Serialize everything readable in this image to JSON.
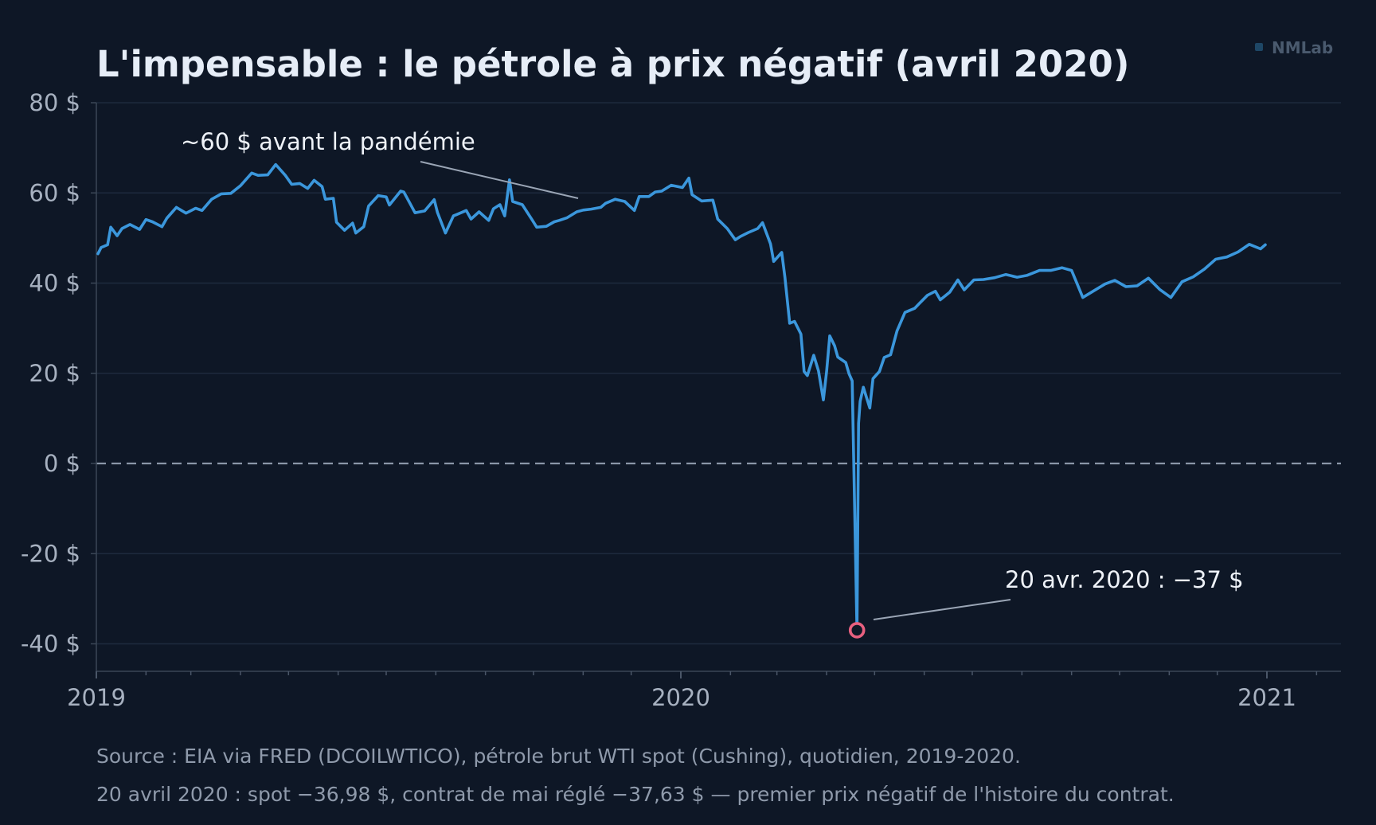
{
  "brand": {
    "label": "NMLab",
    "icon": "square-icon",
    "color": "#1e4766"
  },
  "colors": {
    "background": "#0e1726",
    "line": "#3b97dc",
    "marker": "#e8607f",
    "grid": "#1d2a3d",
    "zero_line": "#8a96a8"
  },
  "annotations": {
    "pre_pandemic": "~60 $ avant la pandémie",
    "negative": "20 avr. 2020 : −37 $"
  },
  "footer": {
    "line1": "Source : EIA via FRED (DCOILWTICO), pétrole brut WTI spot (Cushing), quotidien, 2019-2020.",
    "line2": "20 avril 2020 : spot −36,98 $, contrat de mai réglé −37,63 $ — premier prix négatif de l'histoire du contrat."
  },
  "chart_data": {
    "type": "line",
    "title": "L'impensable : le pétrole à prix négatif (avril 2020)",
    "xlabel": "",
    "ylabel": "",
    "xlim": [
      "2019-01-01",
      "2021-03-01"
    ],
    "ylim": [
      -46,
      80
    ],
    "yticks": [
      80,
      60,
      40,
      20,
      0,
      -20,
      -40
    ],
    "ytick_labels": [
      "80 $",
      "60 $",
      "40 $",
      "20 $",
      "0 $",
      "-20 $",
      "-40 $"
    ],
    "xticks": [
      "2019-01-01",
      "2020-01-01",
      "2021-01-01"
    ],
    "xtick_labels": [
      "2019",
      "2020",
      "2021"
    ],
    "grid": true,
    "reference_line": {
      "y": 0,
      "style": "dashed"
    },
    "highlight_point": {
      "x": "2020-04-20",
      "y": -36.98
    },
    "series": [
      {
        "values": [
          [
            "2019-01-02",
            46.5
          ],
          [
            "2019-01-04",
            47.9
          ],
          [
            "2019-01-08",
            48.5
          ],
          [
            "2019-01-10",
            52.4
          ],
          [
            "2019-01-14",
            50.5
          ],
          [
            "2019-01-17",
            52.1
          ],
          [
            "2019-01-22",
            53.0
          ],
          [
            "2019-01-28",
            51.9
          ],
          [
            "2019-02-01",
            54.1
          ],
          [
            "2019-02-05",
            53.6
          ],
          [
            "2019-02-11",
            52.5
          ],
          [
            "2019-02-14",
            54.4
          ],
          [
            "2019-02-20",
            56.8
          ],
          [
            "2019-02-26",
            55.5
          ],
          [
            "2019-03-04",
            56.6
          ],
          [
            "2019-03-08",
            56.1
          ],
          [
            "2019-03-14",
            58.6
          ],
          [
            "2019-03-20",
            59.8
          ],
          [
            "2019-03-26",
            59.9
          ],
          [
            "2019-04-01",
            61.6
          ],
          [
            "2019-04-08",
            64.4
          ],
          [
            "2019-04-12",
            63.9
          ],
          [
            "2019-04-18",
            64.0
          ],
          [
            "2019-04-23",
            66.3
          ],
          [
            "2019-04-29",
            63.9
          ],
          [
            "2019-05-03",
            61.9
          ],
          [
            "2019-05-08",
            62.1
          ],
          [
            "2019-05-13",
            61.0
          ],
          [
            "2019-05-17",
            62.8
          ],
          [
            "2019-05-22",
            61.4
          ],
          [
            "2019-05-24",
            58.6
          ],
          [
            "2019-05-29",
            58.8
          ],
          [
            "2019-05-31",
            53.5
          ],
          [
            "2019-06-05",
            51.7
          ],
          [
            "2019-06-10",
            53.3
          ],
          [
            "2019-06-12",
            51.1
          ],
          [
            "2019-06-17",
            52.5
          ],
          [
            "2019-06-20",
            57.1
          ],
          [
            "2019-06-26",
            59.4
          ],
          [
            "2019-07-01",
            59.1
          ],
          [
            "2019-07-03",
            57.3
          ],
          [
            "2019-07-10",
            60.4
          ],
          [
            "2019-07-12",
            60.2
          ],
          [
            "2019-07-16",
            57.6
          ],
          [
            "2019-07-19",
            55.6
          ],
          [
            "2019-07-25",
            56.0
          ],
          [
            "2019-07-31",
            58.5
          ],
          [
            "2019-08-02",
            55.7
          ],
          [
            "2019-08-07",
            51.1
          ],
          [
            "2019-08-12",
            54.9
          ],
          [
            "2019-08-14",
            55.2
          ],
          [
            "2019-08-20",
            56.1
          ],
          [
            "2019-08-23",
            54.2
          ],
          [
            "2019-08-28",
            55.8
          ],
          [
            "2019-09-03",
            53.9
          ],
          [
            "2019-09-06",
            56.5
          ],
          [
            "2019-09-10",
            57.4
          ],
          [
            "2019-09-13",
            54.9
          ],
          [
            "2019-09-16",
            62.9
          ],
          [
            "2019-09-18",
            58.1
          ],
          [
            "2019-09-24",
            57.4
          ],
          [
            "2019-09-30",
            54.1
          ],
          [
            "2019-10-03",
            52.4
          ],
          [
            "2019-10-09",
            52.6
          ],
          [
            "2019-10-14",
            53.6
          ],
          [
            "2019-10-17",
            53.9
          ],
          [
            "2019-10-22",
            54.5
          ],
          [
            "2019-10-28",
            55.8
          ],
          [
            "2019-11-01",
            56.2
          ],
          [
            "2019-11-06",
            56.4
          ],
          [
            "2019-11-12",
            56.8
          ],
          [
            "2019-11-15",
            57.7
          ],
          [
            "2019-11-21",
            58.6
          ],
          [
            "2019-11-27",
            58.1
          ],
          [
            "2019-12-03",
            56.1
          ],
          [
            "2019-12-06",
            59.2
          ],
          [
            "2019-12-12",
            59.2
          ],
          [
            "2019-12-16",
            60.2
          ],
          [
            "2019-12-20",
            60.4
          ],
          [
            "2019-12-26",
            61.7
          ],
          [
            "2020-01-02",
            61.2
          ],
          [
            "2020-01-06",
            63.3
          ],
          [
            "2020-01-08",
            59.6
          ],
          [
            "2020-01-14",
            58.2
          ],
          [
            "2020-01-21",
            58.4
          ],
          [
            "2020-01-24",
            54.2
          ],
          [
            "2020-01-30",
            52.1
          ],
          [
            "2020-02-04",
            49.6
          ],
          [
            "2020-02-07",
            50.3
          ],
          [
            "2020-02-12",
            51.2
          ],
          [
            "2020-02-18",
            52.1
          ],
          [
            "2020-02-21",
            53.4
          ],
          [
            "2020-02-26",
            48.7
          ],
          [
            "2020-02-28",
            44.8
          ],
          [
            "2020-03-04",
            46.8
          ],
          [
            "2020-03-06",
            41.3
          ],
          [
            "2020-03-09",
            31.1
          ],
          [
            "2020-03-12",
            31.5
          ],
          [
            "2020-03-16",
            28.7
          ],
          [
            "2020-03-18",
            20.4
          ],
          [
            "2020-03-20",
            19.5
          ],
          [
            "2020-03-24",
            24.0
          ],
          [
            "2020-03-27",
            20.5
          ],
          [
            "2020-03-30",
            14.1
          ],
          [
            "2020-04-01",
            20.3
          ],
          [
            "2020-04-03",
            28.3
          ],
          [
            "2020-04-06",
            26.1
          ],
          [
            "2020-04-08",
            23.6
          ],
          [
            "2020-04-13",
            22.4
          ],
          [
            "2020-04-15",
            19.9
          ],
          [
            "2020-04-17",
            18.3
          ],
          [
            "2020-04-20",
            -36.98
          ],
          [
            "2020-04-21",
            8.9
          ],
          [
            "2020-04-22",
            13.8
          ],
          [
            "2020-04-24",
            16.9
          ],
          [
            "2020-04-28",
            12.3
          ],
          [
            "2020-04-30",
            18.8
          ],
          [
            "2020-05-04",
            20.4
          ],
          [
            "2020-05-07",
            23.5
          ],
          [
            "2020-05-11",
            24.1
          ],
          [
            "2020-05-15",
            29.4
          ],
          [
            "2020-05-20",
            33.5
          ],
          [
            "2020-05-26",
            34.4
          ],
          [
            "2020-05-29",
            35.5
          ],
          [
            "2020-06-03",
            37.3
          ],
          [
            "2020-06-08",
            38.2
          ],
          [
            "2020-06-11",
            36.3
          ],
          [
            "2020-06-17",
            38.0
          ],
          [
            "2020-06-22",
            40.7
          ],
          [
            "2020-06-26",
            38.5
          ],
          [
            "2020-07-02",
            40.7
          ],
          [
            "2020-07-08",
            40.8
          ],
          [
            "2020-07-15",
            41.2
          ],
          [
            "2020-07-22",
            41.9
          ],
          [
            "2020-07-29",
            41.3
          ],
          [
            "2020-08-04",
            41.7
          ],
          [
            "2020-08-12",
            42.8
          ],
          [
            "2020-08-19",
            42.8
          ],
          [
            "2020-08-26",
            43.4
          ],
          [
            "2020-09-01",
            42.8
          ],
          [
            "2020-09-08",
            36.8
          ],
          [
            "2020-09-15",
            38.3
          ],
          [
            "2020-09-22",
            39.8
          ],
          [
            "2020-09-28",
            40.6
          ],
          [
            "2020-10-05",
            39.2
          ],
          [
            "2020-10-12",
            39.4
          ],
          [
            "2020-10-19",
            41.1
          ],
          [
            "2020-10-26",
            38.6
          ],
          [
            "2020-11-02",
            36.8
          ],
          [
            "2020-11-09",
            40.3
          ],
          [
            "2020-11-16",
            41.4
          ],
          [
            "2020-11-23",
            43.1
          ],
          [
            "2020-11-30",
            45.3
          ],
          [
            "2020-12-07",
            45.8
          ],
          [
            "2020-12-14",
            46.9
          ],
          [
            "2020-12-21",
            48.6
          ],
          [
            "2020-12-28",
            47.6
          ],
          [
            "2020-12-31",
            48.5
          ]
        ]
      }
    ]
  }
}
